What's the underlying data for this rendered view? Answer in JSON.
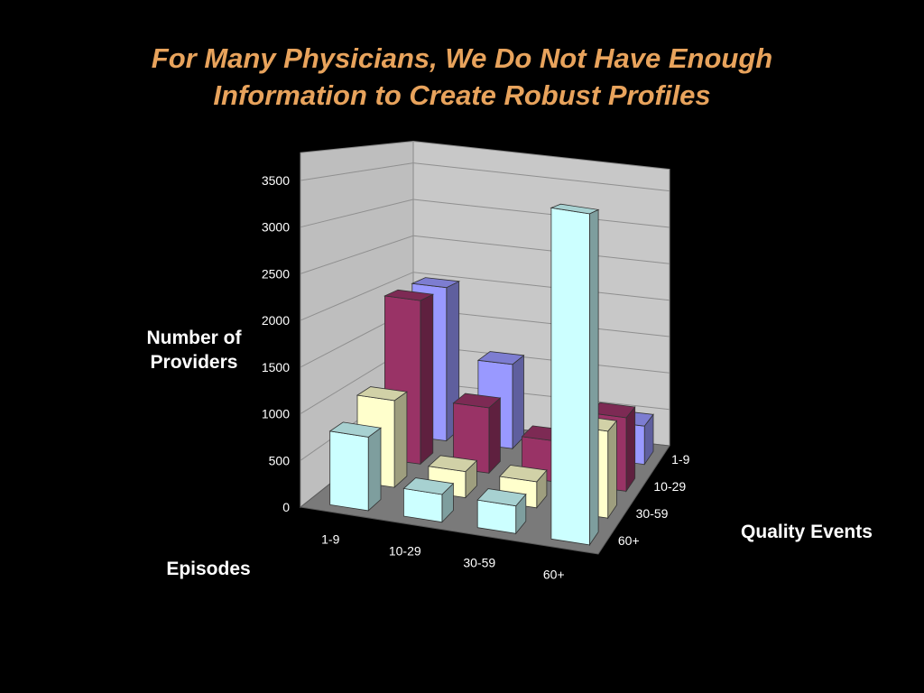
{
  "slide": {
    "title_line1": "For Many Physicians, We Do Not Have Enough",
    "title_line2": "Information to Create Robust Profiles",
    "title_color": "#E8A35C"
  },
  "chart_data": {
    "type": "bar",
    "subtype": "3d-column",
    "title": "",
    "ylabel": "Number of Providers",
    "xlabel": "Episodes",
    "zlabel": "Quality Events",
    "categories": [
      "1-9",
      "10-29",
      "30-59",
      "60+"
    ],
    "y_ticks": [
      "0",
      "500",
      "1000",
      "1500",
      "2000",
      "2500",
      "3000",
      "3500"
    ],
    "ylim": [
      0,
      3500
    ],
    "grid": true,
    "series": [
      {
        "name": "60+",
        "color": "#CCFFFF",
        "values": [
          800,
          300,
          300,
          3600
        ]
      },
      {
        "name": "30-59",
        "color": "#FFFFCC",
        "values": [
          1000,
          300,
          300,
          1000
        ]
      },
      {
        "name": "10-29",
        "color": "#993366",
        "values": [
          2000,
          800,
          500,
          900
        ]
      },
      {
        "name": "1-9",
        "color": "#9999FF",
        "values": [
          2000,
          1100,
          200,
          500
        ]
      }
    ],
    "series_order_back_to_front": [
      "1-9",
      "10-29",
      "30-59",
      "60+"
    ]
  }
}
